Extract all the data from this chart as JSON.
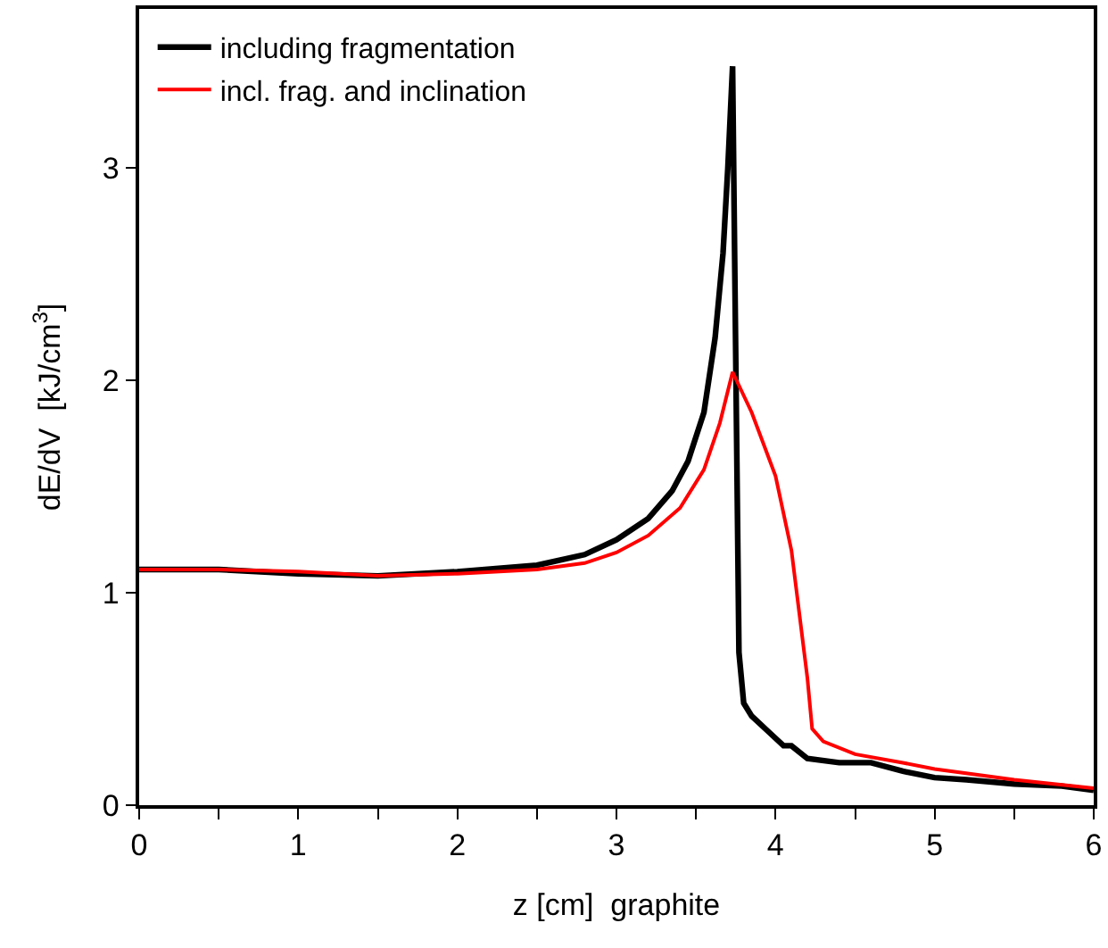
{
  "chart_data": {
    "type": "line",
    "xlabel": "z [cm]  graphite",
    "ylabel": "dE/dV  [kJ/cm$^{3}$]",
    "xlim": [
      0,
      6
    ],
    "ylim": [
      0,
      3.75
    ],
    "xticks": [
      0,
      {
        "value": 0.5,
        "label": null
      },
      1,
      {
        "value": 1.5,
        "label": null
      },
      2,
      {
        "value": 2.5,
        "label": null
      },
      3,
      {
        "value": 3.5,
        "label": null
      },
      4,
      {
        "value": 4.5,
        "label": null
      },
      5,
      {
        "value": 5.5,
        "label": null
      },
      6
    ],
    "yticks": [
      0,
      1,
      2,
      3
    ],
    "grid": false,
    "legend": "top left",
    "marker": "none",
    "line_style": "solid",
    "series": [
      {
        "name": "including fragmentation",
        "color": "#000000",
        "x": [
          0,
          0.5,
          1,
          1.5,
          2,
          2.5,
          2.8,
          3,
          3.2,
          3.35,
          3.45,
          3.55,
          3.62,
          3.67,
          3.7,
          3.73,
          3.77,
          3.8,
          3.85,
          3.95,
          4.05,
          4.1,
          4.2,
          4.4,
          4.6,
          4.8,
          5,
          5.2,
          5.5,
          5.8,
          6
        ],
        "values": [
          1.11,
          1.11,
          1.09,
          1.08,
          1.1,
          1.13,
          1.18,
          1.25,
          1.35,
          1.48,
          1.62,
          1.85,
          2.2,
          2.6,
          3.0,
          3.48,
          0.72,
          0.48,
          0.42,
          0.35,
          0.28,
          0.28,
          0.22,
          0.2,
          0.2,
          0.16,
          0.13,
          0.12,
          0.1,
          0.09,
          0.07
        ]
      },
      {
        "name": "incl. frag. and inclination",
        "color": "#ff0000",
        "x": [
          0,
          0.5,
          1,
          1.5,
          2,
          2.5,
          2.8,
          3,
          3.2,
          3.4,
          3.55,
          3.65,
          3.73,
          3.85,
          4.0,
          4.1,
          4.2,
          4.23,
          4.3,
          4.5,
          4.8,
          5,
          5.5,
          6
        ],
        "values": [
          1.11,
          1.11,
          1.1,
          1.08,
          1.09,
          1.11,
          1.14,
          1.19,
          1.27,
          1.4,
          1.58,
          1.8,
          2.04,
          1.85,
          1.55,
          1.2,
          0.6,
          0.36,
          0.3,
          0.24,
          0.2,
          0.17,
          0.12,
          0.08
        ]
      }
    ]
  }
}
